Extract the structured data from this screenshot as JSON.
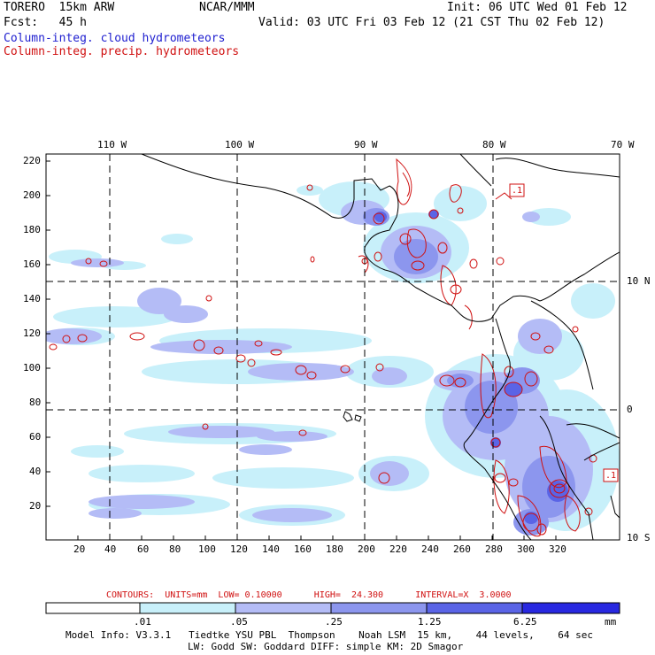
{
  "header": {
    "model": "TORERO  15km ARW",
    "org": "NCAR/MMM",
    "init": "Init: 06 UTC Wed 01 Feb 12",
    "fcst": "Fcst:   45 h",
    "valid": "Valid: 03 UTC Fri 03 Feb 12 (21 CST Thu 02 Feb 12)",
    "field1": "Column-integ. cloud hydrometeors",
    "field2": "Column-integ. precip. hydrometeors"
  },
  "colors": {
    "field1": "#2020d0",
    "field2": "#d01010",
    "shade_light": "#c8f0fa",
    "shade_1": "#b4bcf6",
    "shade_2": "#8c96ee",
    "shade_3": "#5a64e6",
    "shade_4": "#2828e0"
  },
  "map": {
    "lon_labels": [
      "110 W",
      "100 W",
      "90 W",
      "80 W",
      "70 W"
    ],
    "lat_labels": [
      "10 N",
      "0",
      "10 S"
    ],
    "y_ticks": [
      "220",
      "200",
      "180",
      "160",
      "140",
      "120",
      "100",
      "80",
      "60",
      "40",
      "20"
    ],
    "x_ticks": [
      "20",
      "40",
      "60",
      "80",
      "100",
      "120",
      "140",
      "160",
      "180",
      "200",
      "220",
      "240",
      "260",
      "280",
      "300",
      "320"
    ]
  },
  "contours": {
    "label": "CONTOURS:  UNITS=mm  LOW= 0.10000      HIGH=  24.300      INTERVAL=X  3.0000",
    "inline_label": ".1"
  },
  "colorbar": {
    "ticks": [
      ".01",
      ".05",
      ".25",
      "1.25",
      "6.25"
    ],
    "unit": "mm"
  },
  "footer": {
    "line1": "Model Info: V3.3.1   Tiedtke YSU PBL  Thompson    Noah LSM  15 km,    44 levels,    64 sec",
    "line2": "LW: Godd SW: Goddard DIFF: simple KM: 2D Smagor"
  }
}
